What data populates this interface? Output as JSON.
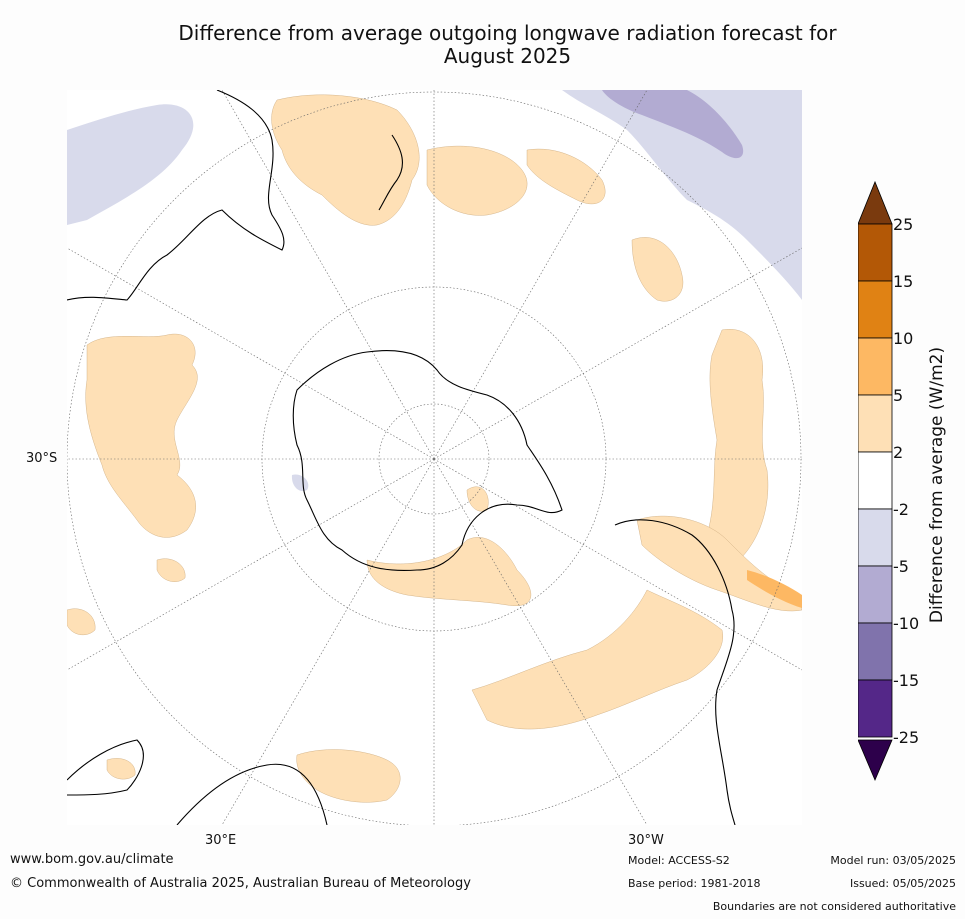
{
  "title_line1": "Difference from average outgoing longwave radiation forecast for",
  "title_line2": "August 2025",
  "lon_labels": {
    "west_lat": "30°S",
    "bottom_left": "30°E",
    "bottom_right": "30°W"
  },
  "colorbar": {
    "title": "Difference from average (W/m2)",
    "ticks": [
      "25",
      "15",
      "10",
      "5",
      "2",
      "-2",
      "-5",
      "-10",
      "-15",
      "-25"
    ],
    "colors": [
      "#7a3a0e",
      "#b35806",
      "#e08214",
      "#fdb863",
      "#fee0b6",
      "#ffffff",
      "#d8daeb",
      "#b2abd2",
      "#8073ac",
      "#542788",
      "#2d004b"
    ]
  },
  "footer": {
    "url": "www.bom.gov.au/climate",
    "copyright": "© Commonwealth of Australia 2025, Australian Bureau of Meteorology",
    "model": "Model: ACCESS-S2",
    "base_period": "Base period: 1981-2018",
    "model_run": "Model run: 03/05/2025",
    "issued": "Issued: 05/05/2025",
    "disclaimer": "Boundaries are not considered authoritative"
  }
}
